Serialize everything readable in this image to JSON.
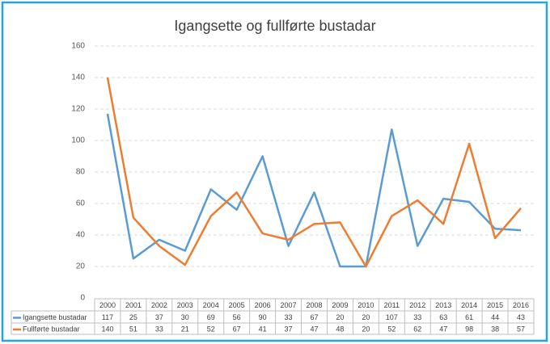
{
  "chart_data": {
    "type": "line",
    "title": "Igangsette og fullførte bustadar",
    "categories": [
      "2000",
      "2001",
      "2002",
      "2003",
      "2004",
      "2005",
      "2006",
      "2007",
      "2008",
      "2009",
      "2010",
      "2011",
      "2012",
      "2013",
      "2014",
      "2015",
      "2016"
    ],
    "series": [
      {
        "name": "Igangsette bustadar",
        "color": "#5b9bd5",
        "values": [
          117,
          25,
          37,
          30,
          69,
          56,
          90,
          33,
          67,
          20,
          20,
          107,
          33,
          63,
          61,
          44,
          43
        ]
      },
      {
        "name": "Fullførte bustadar",
        "color": "#ed7d31",
        "values": [
          140,
          51,
          33,
          21,
          52,
          67,
          41,
          37,
          47,
          48,
          20,
          52,
          62,
          47,
          98,
          38,
          57
        ]
      }
    ],
    "ylim": [
      0,
      160
    ],
    "yticks": [
      0,
      20,
      40,
      60,
      80,
      100,
      120,
      140,
      160
    ],
    "grid": true,
    "data_table": true
  }
}
